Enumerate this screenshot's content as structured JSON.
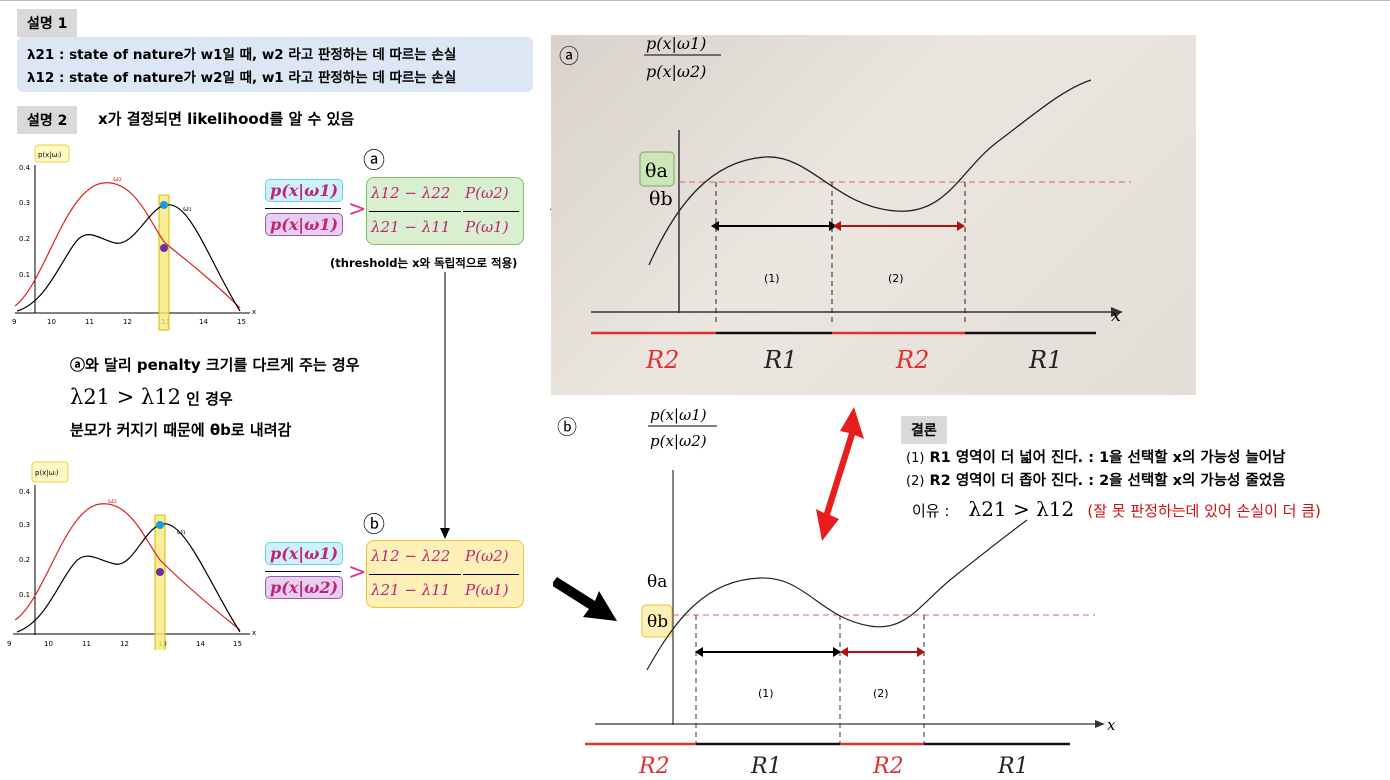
{
  "section1": {
    "tag": "설명 1",
    "line1": "λ21 : state of nature가 w1일 때,  w2 라고 판정하는 데 따르는 손실",
    "line2": "λ12 : state of nature가 w2일 때,  w1 라고 판정하는 데 따르는 손실"
  },
  "section2": {
    "tag": "설명 2",
    "text": "x가 결정되면 likelihood를 알 수 있음"
  },
  "left_chart": {
    "ylabel": "p(x|ωᵢ)",
    "yticks": [
      "0.4",
      "0.3",
      "0.2",
      "0.1"
    ],
    "xticks": [
      "9",
      "10",
      "11",
      "12",
      "13",
      "14",
      "15"
    ],
    "xlabel": "x",
    "w1": "ω₁",
    "w2": "ω₂",
    "colors": {
      "w1": "#000000",
      "w2": "#e02020",
      "marker_w1": "#1a9cd8",
      "marker_w2": "#6b2fa0",
      "band": "#f5e66a"
    }
  },
  "markers": {
    "a": "ⓐ",
    "b": "ⓑ"
  },
  "inequality": {
    "lhs_num": "p(x|ω1)",
    "lhs_den": "p(x|ω2)",
    "gt": ">",
    "rhs_left_num": "λ12 − λ22",
    "rhs_left_den": "λ21 − λ11",
    "rhs_right_num": "P(ω2)",
    "rhs_right_den": "P(ω1)"
  },
  "threshold_note": "(threshold는 x와 독립적으로 적용)",
  "middle_text": {
    "line1": "ⓐ와 달리 penalty 크기를 다르게 주는 경우",
    "cond_math": "λ21 > λ12",
    "cond_tail": " 인 경우",
    "line3": "분모가 커지기 때문에 θb로 내려감"
  },
  "graph_a": {
    "ylabel_num": "p(x|ω1)",
    "ylabel_den": "p(x|ω2)",
    "theta_a": "θa",
    "theta_b": "θb",
    "xlabel": "x",
    "seg1": "(1)",
    "seg2": "(2)",
    "regions": [
      "R2",
      "R1",
      "R2",
      "R1"
    ]
  },
  "graph_b": {
    "ylabel_num": "p(x|ω1)",
    "ylabel_den": "p(x|ω2)",
    "theta_a": "θa",
    "theta_b": "θb",
    "xlabel": "x",
    "seg1": "(1)",
    "seg2": "(2)",
    "regions": [
      "R2",
      "R1",
      "R2",
      "R1"
    ]
  },
  "conclusion": {
    "tag": "결론",
    "item1_num": "(1)",
    "item1": "R1 영역이 더 넓어 진다. : 1을 선택할 x의 가능성 늘어남",
    "item2_num": "(2)",
    "item2": "R2 영역이 더 좁아 진다. : 2을 선택할 x의 가능성 줄었음",
    "reason_label": "이유 :",
    "reason_math": "λ21 > λ12",
    "reason_note": "(잘 못 판정하는데 있어 손실이 더 큼)"
  }
}
